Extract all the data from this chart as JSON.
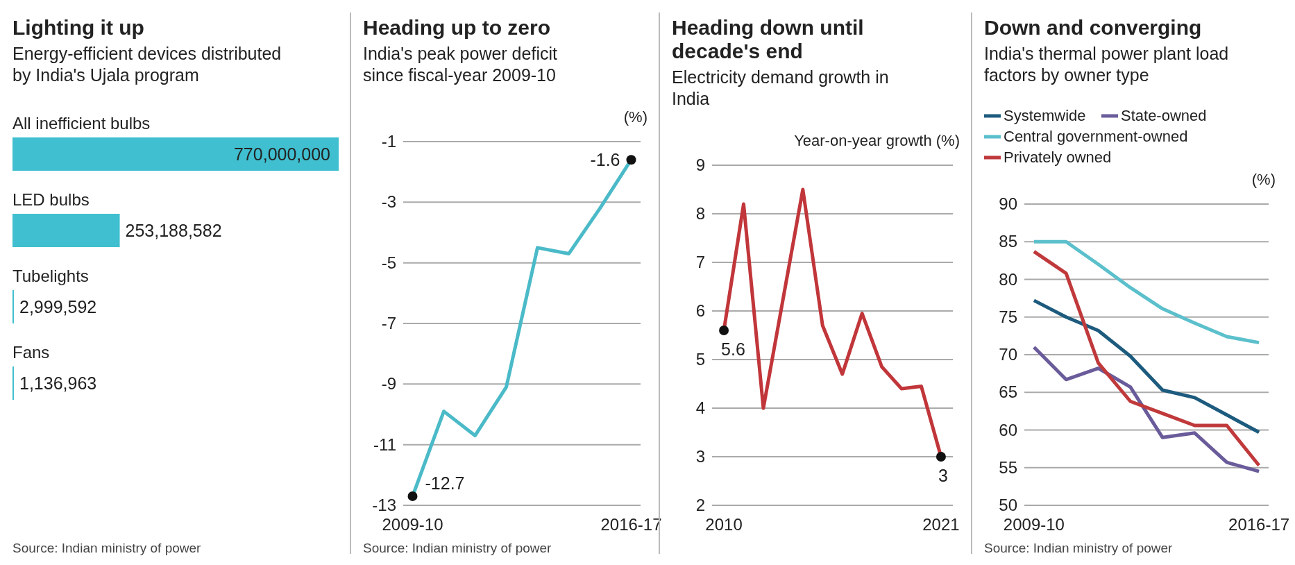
{
  "chart_data": [
    {
      "type": "bar",
      "orientation": "horizontal",
      "title": "Lighting it up",
      "subtitle": "Energy-efficient devices distributed by India's Ujala program",
      "categories": [
        "All inefficient bulbs",
        "LED bulbs",
        "Tubelights",
        "Fans"
      ],
      "values": [
        770000000,
        253188582,
        2999592,
        1136963
      ],
      "value_labels": [
        "770,000,000",
        "253,188,582",
        "2,999,592",
        "1,136,963"
      ],
      "color": "#3fbfcf",
      "annotations": [
        "Source: Indian ministry of power"
      ]
    },
    {
      "type": "line",
      "title": "Heading up to zero",
      "subtitle": "India's peak power deficit since fiscal-year 2009-10",
      "ylabel": "(%)",
      "categories": [
        "2009-10",
        null,
        null,
        null,
        null,
        null,
        null,
        "2016-17"
      ],
      "series": [
        {
          "color": "#4bbac8",
          "values": [
            -12.7,
            -9.9,
            -10.7,
            -9.1,
            -4.5,
            -4.7,
            -3.2,
            -1.6
          ]
        }
      ],
      "ylim": [
        -13,
        -1
      ],
      "yticks": [
        -1,
        -3,
        -5,
        -7,
        -9,
        -11,
        -13
      ],
      "grid": "y",
      "marker": "none",
      "annotations": [
        {
          "text": "-12.7",
          "x": "2009-10",
          "y": -12.7
        },
        {
          "text": "-1.6",
          "x": "2016-17",
          "y": -1.6
        },
        "Source: Indian ministry of power"
      ]
    },
    {
      "type": "line",
      "title": "Heading down until decade's end",
      "subtitle": "Electricity demand growth in India",
      "ylabel": "Year-on-year growth (%)",
      "x": [
        2010,
        2011,
        2012,
        2013,
        2014,
        2015,
        2016,
        2017,
        2018,
        2019,
        2020,
        2021
      ],
      "series": [
        {
          "color": "#c1363a",
          "values": [
            5.6,
            8.2,
            4.0,
            6.25,
            8.5,
            5.7,
            4.7,
            5.95,
            4.85,
            4.4,
            4.45,
            3
          ]
        }
      ],
      "xlim": [
        2009.4,
        2021.6
      ],
      "xticks": [
        2010,
        2021
      ],
      "ylim": [
        2,
        9
      ],
      "yticks": [
        2,
        3,
        4,
        5,
        6,
        7,
        8,
        9
      ],
      "grid": "y",
      "marker": "none",
      "annotations": [
        {
          "text": "5.6",
          "x": 2010,
          "y": 5.6
        },
        {
          "text": "3",
          "x": 2021,
          "y": 3
        }
      ]
    },
    {
      "type": "line",
      "title": "Down and converging",
      "subtitle": "India's thermal power plant load factors by owner type",
      "ylabel": "(%)",
      "categories": [
        "2009-10",
        null,
        null,
        null,
        null,
        null,
        null,
        "2016-17"
      ],
      "series": [
        {
          "name": "Systemwide",
          "color": "#1d5b7e",
          "values": [
            77.2,
            75.0,
            73.2,
            69.8,
            65.3,
            64.3,
            62.0,
            59.7
          ]
        },
        {
          "name": "State-owned",
          "color": "#6a5b9a",
          "values": [
            71.0,
            66.7,
            68.2,
            65.7,
            59.0,
            59.6,
            55.7,
            54.5
          ]
        },
        {
          "name": "Central government-owned",
          "color": "#5bc0cc",
          "values": [
            85.0,
            85.0,
            82.0,
            78.9,
            76.1,
            74.2,
            72.4,
            71.6
          ]
        },
        {
          "name": "Privately owned",
          "color": "#c0393b",
          "values": [
            83.7,
            80.8,
            68.9,
            63.8,
            62.2,
            60.6,
            60.6,
            55.3
          ]
        }
      ],
      "ylim": [
        50,
        90
      ],
      "yticks": [
        50,
        55,
        60,
        65,
        70,
        75,
        80,
        85,
        90
      ],
      "grid": "y",
      "legend": "top",
      "marker": "none",
      "annotations": [
        "Source: Indian ministry of power"
      ]
    }
  ]
}
